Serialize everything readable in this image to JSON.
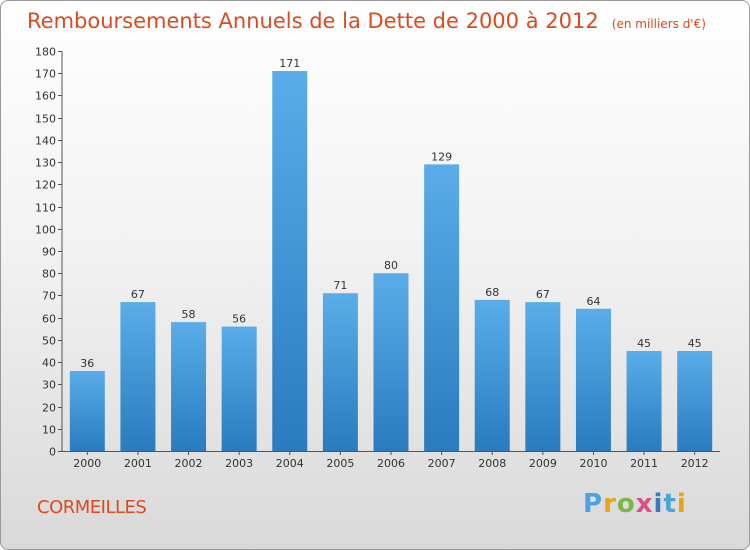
{
  "header": {
    "title": "Remboursements Annuels de la Dette de 2000 à 2012",
    "unit": "(en milliers d'€)"
  },
  "footer": {
    "commune": "CORMEILLES",
    "logo": {
      "text": "Proxiti",
      "colors": [
        "#4aa3df",
        "#e8a317",
        "#7ab648",
        "#e04b8a",
        "#3a78c3"
      ]
    }
  },
  "colors": {
    "accent": "#dc4a1d",
    "bar_top": "#5aade8",
    "bar_bottom": "#2a7bbf"
  },
  "chart_data": {
    "type": "bar",
    "title": "Remboursements Annuels de la Dette de 2000 à 2012",
    "xlabel": "",
    "ylabel": "",
    "categories": [
      "2000",
      "2001",
      "2002",
      "2003",
      "2004",
      "2005",
      "2006",
      "2007",
      "2008",
      "2009",
      "2010",
      "2011",
      "2012"
    ],
    "values": [
      36,
      67,
      58,
      56,
      171,
      71,
      80,
      129,
      68,
      67,
      64,
      45,
      45
    ],
    "ylim": [
      0,
      180
    ],
    "yticks": [
      0,
      10,
      20,
      30,
      40,
      50,
      60,
      70,
      80,
      90,
      100,
      110,
      120,
      130,
      140,
      150,
      160,
      170,
      180
    ],
    "grid": false,
    "legend": "none"
  }
}
